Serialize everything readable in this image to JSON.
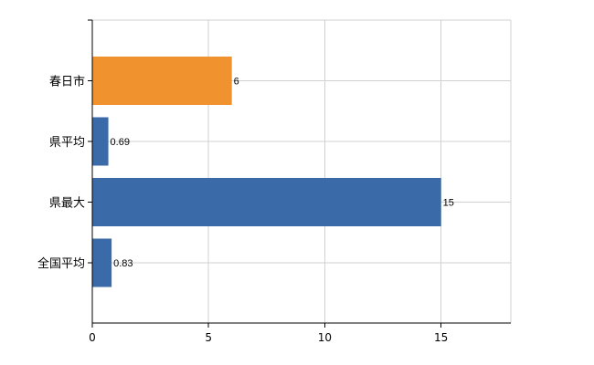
{
  "chart_data": {
    "type": "bar",
    "orientation": "horizontal",
    "categories": [
      "春日市",
      "県平均",
      "県最大",
      "全国平均"
    ],
    "values": [
      6,
      0.69,
      15,
      0.83
    ],
    "value_labels": [
      "6",
      "0.69",
      "15",
      "0.83"
    ],
    "xlim": [
      0,
      18
    ],
    "xticks": [
      0,
      5,
      10,
      15
    ],
    "xtick_labels": [
      "0",
      "5",
      "10",
      "15"
    ],
    "grid": true,
    "colors": {
      "highlight": "#f0922e",
      "default": "#3b6aa8",
      "grid": "#d0d0d0",
      "axis": "#000000"
    },
    "highlight_index": 0
  }
}
